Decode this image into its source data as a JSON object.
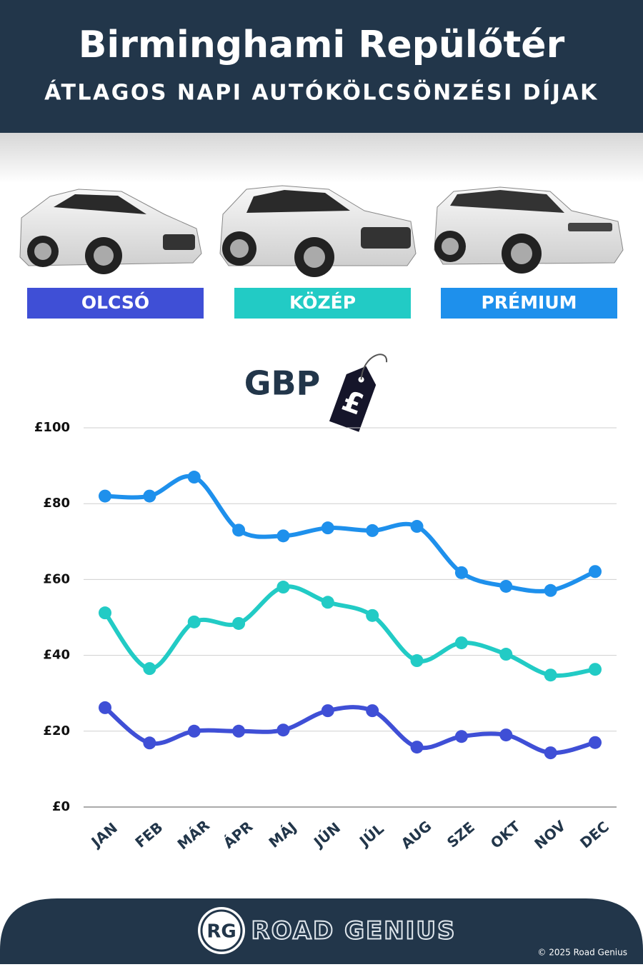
{
  "chart_data": {
    "type": "line",
    "title": "Birminghami Repülőtér",
    "subtitle": "ÁTLAGOS NAPI AUTÓKÖLCSÖNZÉSI DÍJAK",
    "currency": "GBP",
    "currency_symbol": "£",
    "categories": [
      "JAN",
      "FEB",
      "MÁR",
      "ÁPR",
      "MÁJ",
      "JÚN",
      "JÚL",
      "AUG",
      "SZE",
      "OKT",
      "NOV",
      "DEC"
    ],
    "series": [
      {
        "name": "OLCSÓ",
        "color": "#3f4fd6",
        "values": [
          26.2,
          16.9,
          20,
          20,
          20.3,
          25.4,
          25.4,
          15.8,
          18.6,
          19,
          14.3,
          17
        ]
      },
      {
        "name": "KÖZÉP",
        "color": "#22cbc5",
        "values": [
          51.2,
          36.5,
          48.8,
          48.4,
          58,
          54,
          50.5,
          38.6,
          43.3,
          40.3,
          34.8,
          36.3
        ]
      },
      {
        "name": "PRÉMIUM",
        "color": "#1e90ec",
        "values": [
          82,
          82,
          87,
          73,
          71.5,
          73.6,
          72.9,
          74,
          61.8,
          58.2,
          57.1,
          62.1
        ]
      }
    ],
    "ylim": [
      0,
      100
    ],
    "yticks": [
      {
        "value": 0,
        "label": "£0"
      },
      {
        "value": 20,
        "label": "£20"
      },
      {
        "value": 40,
        "label": "£40"
      },
      {
        "value": 60,
        "label": "£60"
      },
      {
        "value": 80,
        "label": "£80"
      },
      {
        "value": 100,
        "label": "£100"
      }
    ],
    "grid": true
  },
  "footer": {
    "logo": "RG",
    "brand": "ROAD GENIUS",
    "copyright": "© 2025 Road Genius"
  }
}
